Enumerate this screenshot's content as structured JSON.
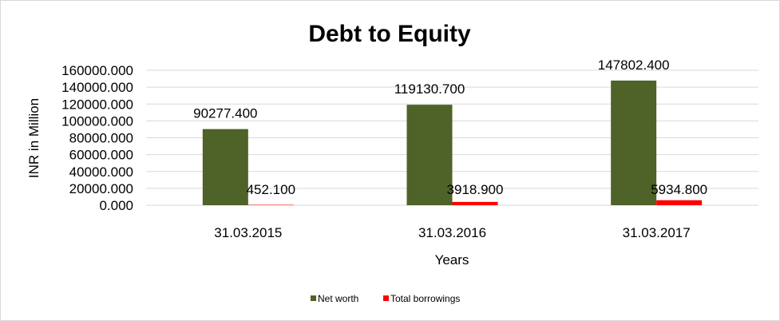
{
  "chart_data": {
    "type": "bar",
    "title": "Debt to Equity",
    "xlabel": "Years",
    "ylabel": "INR in Million",
    "categories": [
      "31.03.2015",
      "31.03.2016",
      "31.03.2017"
    ],
    "series": [
      {
        "name": "Net worth",
        "values": [
          90277.4,
          119130.7,
          147802.4
        ],
        "labels": [
          "90277.400",
          "119130.700",
          "147802.400"
        ],
        "color": "#4f6228"
      },
      {
        "name": "Total borrowings",
        "values": [
          452.1,
          3918.9,
          5934.8
        ],
        "labels": [
          "452.100",
          "3918.900",
          "5934.800"
        ],
        "color": "#ff0000"
      }
    ],
    "ylim": [
      0,
      160000
    ],
    "yticks": [
      "0.000",
      "20000.000",
      "40000.000",
      "60000.000",
      "80000.000",
      "100000.000",
      "120000.000",
      "140000.000",
      "160000.000"
    ],
    "grid": true,
    "legend": "bottom"
  }
}
